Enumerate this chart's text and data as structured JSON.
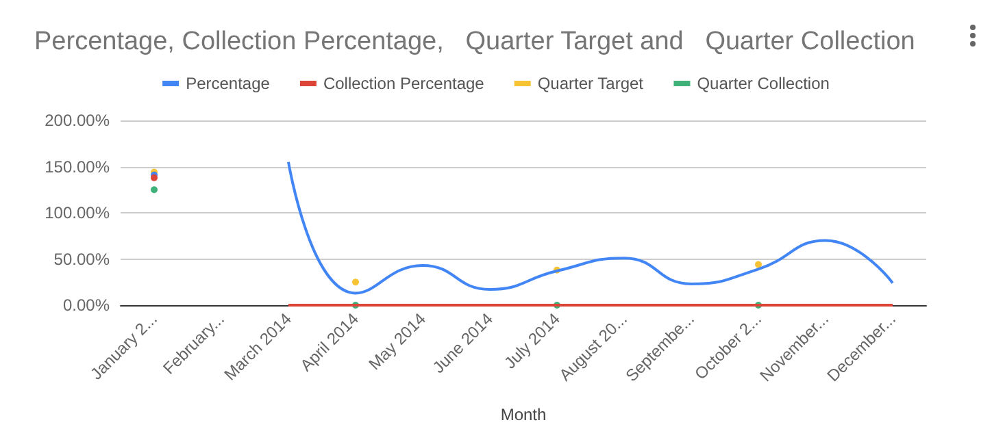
{
  "chart_data": {
    "type": "line",
    "title": "Percentage, Collection Percentage,   Quarter Target and   Quarter Collection",
    "xlabel": "Month",
    "categories": [
      "January 2...",
      "February...",
      "March 2014",
      "April 2014",
      "May 2014",
      "June 2014",
      "July 2014",
      "August 20...",
      "Septembe...",
      "October 2...",
      "November...",
      "December..."
    ],
    "series": [
      {
        "name": "Percentage",
        "color": "#4285f4",
        "values": [
          141,
          null,
          155,
          13,
          43,
          17,
          37,
          51,
          23,
          39,
          70,
          24
        ]
      },
      {
        "name": "Collection Percentage",
        "color": "#db4437",
        "values": [
          138,
          null,
          0,
          0,
          0,
          0,
          0,
          0,
          0,
          0,
          0,
          0
        ]
      },
      {
        "name": "Quarter Target",
        "type": "scatter",
        "color": "#f4b400",
        "values": [
          144,
          null,
          null,
          25,
          null,
          null,
          38,
          null,
          null,
          44,
          null,
          null
        ]
      },
      {
        "name": "Quarter Collection",
        "type": "scatter",
        "color": "#0f9d58",
        "values": [
          125,
          null,
          null,
          0,
          null,
          null,
          0,
          null,
          null,
          0,
          null,
          null
        ]
      }
    ],
    "ylim": [
      0,
      200
    ],
    "yticks": [
      {
        "value": 0,
        "label": "0.00%"
      },
      {
        "value": 50,
        "label": "50.00%"
      },
      {
        "value": 100,
        "label": "100.00%"
      },
      {
        "value": 150,
        "label": "150.00%"
      },
      {
        "value": 200,
        "label": "200.00%"
      }
    ],
    "grid": "y",
    "legend": "top"
  }
}
